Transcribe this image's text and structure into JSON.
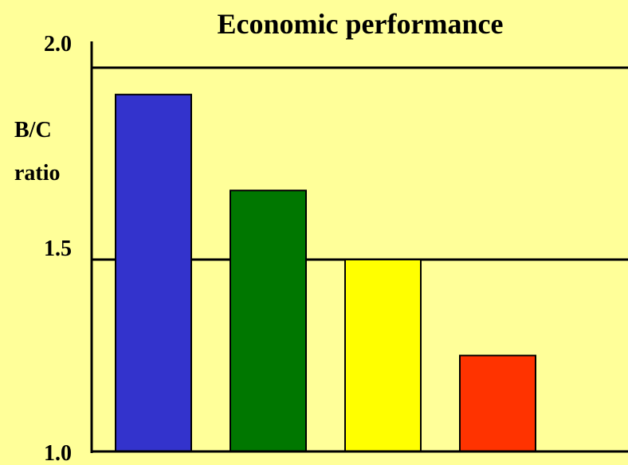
{
  "chart_data": {
    "type": "bar",
    "title": "Economic performance",
    "ylabel_lines": [
      "B/C",
      "ratio"
    ],
    "ylim": [
      1.0,
      2.0
    ],
    "yticks": [
      "2.0",
      "1.5",
      "1.0"
    ],
    "ytick_values": [
      2.0,
      1.5,
      1.0
    ],
    "grid": true,
    "values": [
      1.93,
      1.68,
      1.5,
      1.25
    ],
    "colors": [
      "#3333cc",
      "#007700",
      "#ffff00",
      "#ff3300"
    ],
    "background": "#ffff99"
  }
}
